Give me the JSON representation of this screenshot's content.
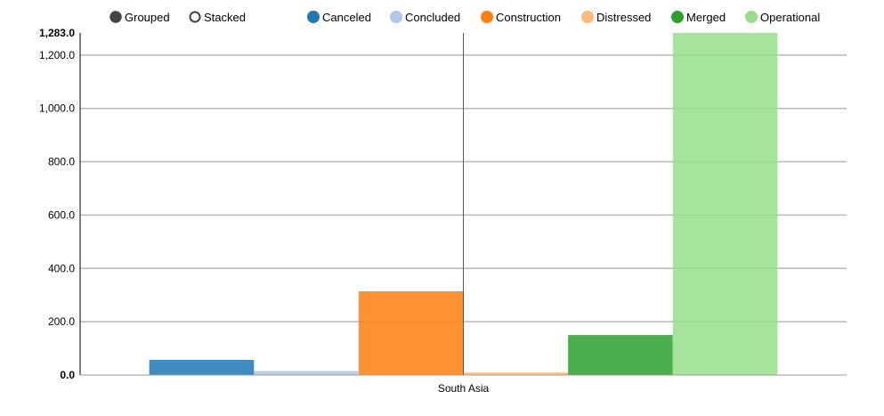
{
  "controls": {
    "grouped_label": "Grouped",
    "stacked_label": "Stacked",
    "selected": "Grouped"
  },
  "chart_data": {
    "type": "bar",
    "mode": "grouped",
    "categories": [
      "South Asia"
    ],
    "series": [
      {
        "name": "Canceled",
        "values": [
          57
        ],
        "color": "#1f77b4"
      },
      {
        "name": "Concluded",
        "values": [
          15
        ],
        "color": "#aec7e8"
      },
      {
        "name": "Construction",
        "values": [
          314
        ],
        "color": "#ff7f0e"
      },
      {
        "name": "Distressed",
        "values": [
          10
        ],
        "color": "#ffbb78"
      },
      {
        "name": "Merged",
        "values": [
          150
        ],
        "color": "#2ca02c"
      },
      {
        "name": "Operational",
        "values": [
          1283
        ],
        "color": "#98df8a"
      }
    ],
    "ylim": [
      0,
      1283
    ],
    "yticks": [
      0,
      200,
      400,
      600,
      800,
      1000,
      1200
    ],
    "ytick_labels": [
      "0.0",
      "200.0",
      "400.0",
      "600.0",
      "800.0",
      "1,000.0",
      "1,200.0"
    ],
    "ymax_label": "1,283.0",
    "grid": true,
    "legend_position": "top-right",
    "xlabel": "",
    "ylabel": "",
    "title": ""
  }
}
